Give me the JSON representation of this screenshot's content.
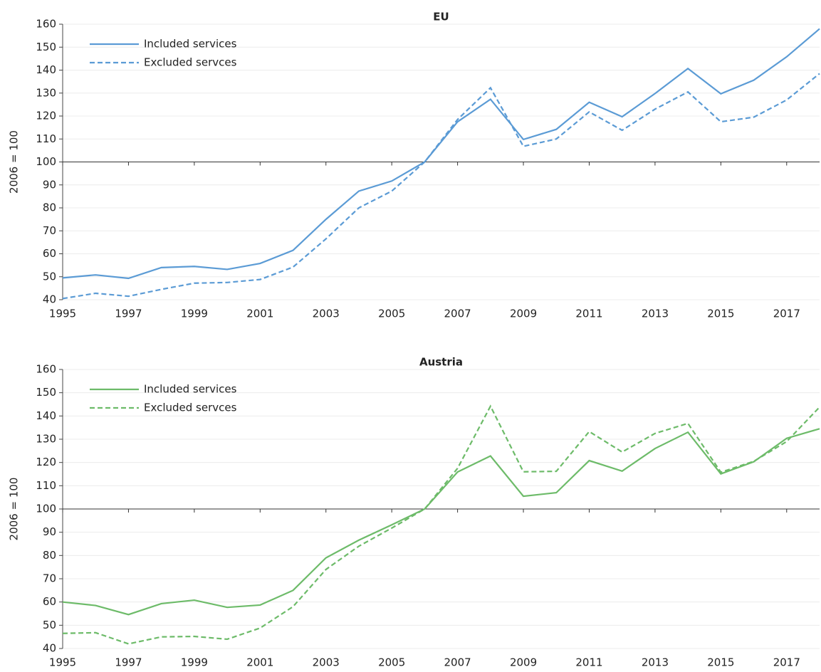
{
  "chart_data": [
    {
      "type": "line",
      "title": "EU",
      "ylabel": "2006 = 100",
      "x": [
        1995,
        1996,
        1997,
        1998,
        1999,
        2000,
        2001,
        2002,
        2003,
        2004,
        2005,
        2006,
        2007,
        2008,
        2009,
        2010,
        2011,
        2012,
        2013,
        2014,
        2015,
        2016,
        2017,
        2018
      ],
      "series": [
        {
          "name": "Included services",
          "color": "#5b9bd5",
          "style": "solid",
          "values": [
            49.5,
            50.8,
            49.3,
            54,
            54.5,
            53.2,
            55.8,
            61.5,
            75,
            87.3,
            91.7,
            100,
            117.5,
            127.3,
            109.8,
            114.2,
            126,
            119.7,
            129.8,
            140.7,
            129.7,
            135.6,
            145.8,
            158
          ]
        },
        {
          "name": "Excluded servces",
          "color": "#5b9bd5",
          "style": "dashed",
          "values": [
            40.5,
            42.8,
            41.5,
            44.5,
            47.2,
            47.5,
            48.8,
            54.2,
            66.5,
            80,
            87.3,
            100,
            118.5,
            132.3,
            106.8,
            110,
            121.8,
            113.8,
            123,
            130.5,
            117.5,
            119.5,
            127,
            138.5
          ]
        }
      ],
      "xlim": [
        1995,
        2018
      ],
      "xticks": [
        1995,
        1997,
        1999,
        2001,
        2003,
        2005,
        2007,
        2009,
        2011,
        2013,
        2015,
        2017
      ],
      "ylim": [
        40,
        160
      ],
      "yticks": [
        40,
        50,
        60,
        70,
        80,
        90,
        100,
        110,
        120,
        130,
        140,
        150,
        160
      ],
      "x_axis_at": 100,
      "grid": true,
      "legend": "top-left"
    },
    {
      "type": "line",
      "title": "Austria",
      "ylabel": "2006 = 100",
      "x": [
        1995,
        1996,
        1997,
        1998,
        1999,
        2000,
        2001,
        2002,
        2003,
        2004,
        2005,
        2006,
        2007,
        2008,
        2009,
        2010,
        2011,
        2012,
        2013,
        2014,
        2015,
        2016,
        2017,
        2018
      ],
      "series": [
        {
          "name": "Included services",
          "color": "#6dbb69",
          "style": "solid",
          "values": [
            60,
            58.5,
            54.6,
            59.3,
            60.8,
            57.7,
            58.7,
            65,
            79,
            86.6,
            93.2,
            100,
            115.9,
            122.8,
            105.5,
            107,
            120.8,
            116.3,
            126,
            133,
            115.1,
            120.3,
            130.4,
            134.5
          ]
        },
        {
          "name": "Excluded servces",
          "color": "#6dbb69",
          "style": "dashed",
          "values": [
            46.5,
            46.8,
            42,
            45,
            45.2,
            44,
            48.8,
            58,
            74,
            84,
            91.8,
            100,
            117.5,
            144.2,
            116,
            116.2,
            133.3,
            124.5,
            132.5,
            136.8,
            115.8,
            120.5,
            129,
            143.8
          ]
        }
      ],
      "xlim": [
        1995,
        2018
      ],
      "xticks": [
        1995,
        1997,
        1999,
        2001,
        2003,
        2005,
        2007,
        2009,
        2011,
        2013,
        2015,
        2017
      ],
      "ylim": [
        40,
        160
      ],
      "yticks": [
        40,
        50,
        60,
        70,
        80,
        90,
        100,
        110,
        120,
        130,
        140,
        150,
        160
      ],
      "x_axis_at": 100,
      "grid": true,
      "legend": "top-left"
    }
  ]
}
